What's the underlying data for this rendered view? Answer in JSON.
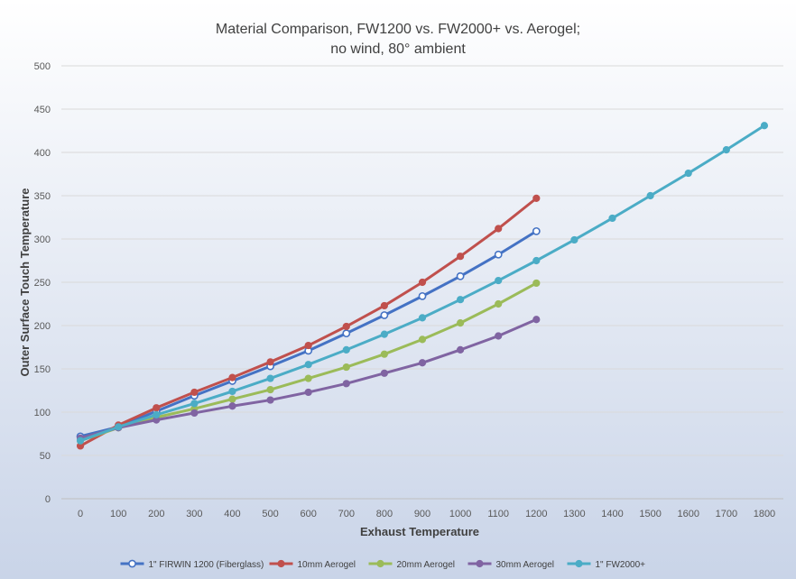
{
  "chart_data": {
    "type": "line",
    "title_lines": [
      "Material Comparison, FW1200 vs. FW2000+ vs. Aerogel;",
      "no wind, 80° ambient"
    ],
    "xlabel": "Exhaust Temperature",
    "ylabel": "Outer Surface Touch Temperature",
    "x": [
      0,
      100,
      200,
      300,
      400,
      500,
      600,
      700,
      800,
      900,
      1000,
      1100,
      1200,
      1300,
      1400,
      1500,
      1600,
      1700,
      1800
    ],
    "xlim": [
      0,
      1800
    ],
    "ylim": [
      0,
      500
    ],
    "yticks": [
      0,
      50,
      100,
      150,
      200,
      250,
      300,
      350,
      400,
      450,
      500
    ],
    "grid": true,
    "legend": "bottom",
    "series": [
      {
        "name": "1\" FIRWIN 1200 (Fiberglass)",
        "color": "#4472c4",
        "marker": "hollow-circle",
        "values": [
          72,
          83,
          101,
          119,
          136,
          153,
          171,
          191,
          212,
          234,
          257,
          282,
          309,
          null,
          null,
          null,
          null,
          null,
          null
        ]
      },
      {
        "name": "10mm Aerogel",
        "color": "#c0504d",
        "marker": "circle",
        "values": [
          61,
          85,
          105,
          123,
          140,
          158,
          177,
          199,
          223,
          250,
          280,
          312,
          347,
          null,
          null,
          null,
          null,
          null,
          null
        ]
      },
      {
        "name": "20mm Aerogel",
        "color": "#9bbb59",
        "marker": "circle",
        "values": [
          67,
          82,
          94,
          104,
          115,
          126,
          139,
          152,
          167,
          184,
          203,
          225,
          249,
          null,
          null,
          null,
          null,
          null,
          null
        ]
      },
      {
        "name": "30mm Aerogel",
        "color": "#8064a2",
        "marker": "circle",
        "values": [
          70,
          82,
          91,
          99,
          107,
          114,
          123,
          133,
          145,
          157,
          172,
          188,
          207,
          null,
          null,
          null,
          null,
          null,
          null
        ]
      },
      {
        "name": "1\" FW2000+",
        "color": "#4bacc6",
        "marker": "circle",
        "values": [
          67,
          83,
          97,
          110,
          124,
          139,
          155,
          172,
          190,
          209,
          230,
          252,
          275,
          299,
          324,
          350,
          376,
          403,
          431
        ]
      }
    ]
  }
}
